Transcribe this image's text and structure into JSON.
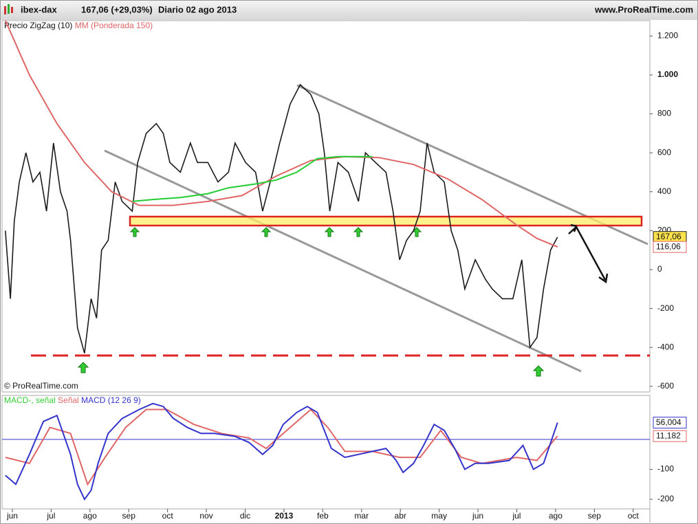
{
  "header": {
    "symbol": "ibex-dax",
    "quote": "167,06 (+29,03%)",
    "period": "Diario  02 ago 2013",
    "site": "www.ProRealTime.com",
    "copyright": "© ProRealTime.com"
  },
  "chart_data": [
    {
      "type": "line",
      "xlim": [
        -0.265,
        16.43
      ],
      "ylim": [
        -629,
        1279
      ],
      "yticks": [
        {
          "value": 1200,
          "label": "1.200"
        },
        {
          "value": 1000,
          "label": "1.000"
        },
        800,
        600,
        400,
        200,
        0,
        -200,
        -400,
        -600
      ],
      "series": [
        {
          "name": "Precio ZigZag (10)",
          "color": "#1a1a1a",
          "last_label": "167,06",
          "x": [
            -0.18,
            -0.05,
            0.05,
            0.18,
            0.35,
            0.53,
            0.71,
            0.88,
            1.06,
            1.24,
            1.41,
            1.5,
            1.68,
            1.86,
            2.03,
            2.17,
            2.3,
            2.47,
            2.65,
            2.83,
            3.09,
            3.23,
            3.45,
            3.71,
            3.89,
            4.06,
            4.33,
            4.59,
            4.77,
            5.04,
            5.3,
            5.57,
            5.74,
            6.01,
            6.27,
            6.45,
            6.71,
            6.89,
            7.16,
            7.42,
            7.69,
            7.9,
            8.04,
            8.18,
            8.39,
            8.66,
            8.92,
            9.1,
            9.36,
            9.63,
            9.81,
            9.98,
            10.16,
            10.34,
            10.51,
            10.69,
            10.87,
            11.13,
            11.31,
            11.48,
            11.66,
            11.93,
            12.19,
            12.37,
            12.63,
            12.9,
            13.13,
            13.34,
            13.52,
            13.69,
            13.87,
            14.05
          ],
          "values": [
            200,
            -150,
            250,
            450,
            600,
            450,
            500,
            300,
            650,
            400,
            300,
            150,
            -300,
            -430,
            -150,
            -250,
            100,
            150,
            450,
            350,
            300,
            550,
            700,
            750,
            700,
            550,
            500,
            650,
            550,
            550,
            450,
            500,
            650,
            550,
            500,
            300,
            500,
            650,
            850,
            950,
            900,
            800,
            600,
            300,
            550,
            500,
            350,
            600,
            550,
            500,
            300,
            50,
            150,
            200,
            300,
            650,
            500,
            450,
            200,
            100,
            -100,
            50,
            -50,
            -100,
            -150,
            -150,
            50,
            -400,
            -350,
            -100,
            100,
            167.06
          ]
        },
        {
          "name": "MM (Ponderada 150)",
          "color": "#e06666",
          "last_label": "116,06",
          "x": [
            -0.18,
            0.44,
            1.15,
            1.86,
            2.56,
            3.27,
            4.15,
            5.04,
            5.92,
            6.8,
            7.69,
            8.57,
            9.45,
            10.34,
            11.22,
            12.1,
            12.99,
            13.52,
            14.05
          ],
          "values": [
            1280,
            1000,
            750,
            550,
            400,
            330,
            330,
            350,
            380,
            480,
            560,
            580,
            575,
            540,
            466,
            360,
            230,
            160,
            116.06
          ]
        },
        {
          "color": "#22cc33",
          "x": [
            3.09,
            3.62,
            4.33,
            5.04,
            5.57,
            6.27,
            6.8,
            7.33,
            7.86,
            8.39,
            9.28
          ],
          "values": [
            350,
            360,
            370,
            390,
            420,
            440,
            460,
            500,
            570,
            580,
            580
          ]
        }
      ]
    },
    {
      "type": "line",
      "label": "MACD-, señal",
      "xlim": [
        -0.265,
        16.43
      ],
      "ylim": [
        -232,
        147
      ],
      "yticks": [
        -100,
        -200
      ],
      "baseline": 0,
      "xticks": [
        {
          "value": 0,
          "label": "jun"
        },
        {
          "value": 1,
          "label": "jul"
        },
        {
          "value": 2,
          "label": "ago"
        },
        {
          "value": 3,
          "label": "sep"
        },
        {
          "value": 4,
          "label": "oct"
        },
        {
          "value": 5,
          "label": "nov"
        },
        {
          "value": 6,
          "label": "dic"
        },
        {
          "value": 7,
          "label": "2013"
        },
        {
          "value": 8,
          "label": "feb"
        },
        {
          "value": 9,
          "label": "mar"
        },
        {
          "value": 10,
          "label": "abr"
        },
        {
          "value": 11,
          "label": "may"
        },
        {
          "value": 12,
          "label": "jun"
        },
        {
          "value": 13,
          "label": "jul"
        },
        {
          "value": 14,
          "label": "ago"
        },
        {
          "value": 15,
          "label": "sep"
        },
        {
          "value": 16,
          "label": "oct"
        }
      ],
      "series": [
        {
          "name": "Señal",
          "color": "#e06666",
          "last_label": "11,182",
          "x": [
            -0.18,
            0.44,
            0.97,
            1.5,
            1.94,
            2.39,
            2.92,
            3.45,
            3.98,
            4.68,
            5.39,
            6.1,
            6.54,
            7.16,
            7.69,
            8.13,
            8.57,
            9.28,
            9.98,
            10.51,
            11.04,
            11.57,
            12.1,
            12.99,
            13.52,
            14.05
          ],
          "values": [
            -60,
            -80,
            40,
            20,
            -150,
            -60,
            40,
            100,
            100,
            50,
            20,
            5,
            -30,
            40,
            100,
            40,
            -40,
            -40,
            -60,
            -60,
            30,
            -60,
            -80,
            -60,
            -70,
            11.182
          ]
        },
        {
          "name": "MACD (12 26 9)",
          "color": "#3333cc",
          "last_label": "56,004",
          "x": [
            -0.18,
            0.09,
            0.44,
            0.8,
            1.15,
            1.5,
            1.68,
            1.86,
            2.03,
            2.21,
            2.47,
            2.83,
            3.27,
            3.62,
            3.89,
            4.15,
            4.51,
            4.86,
            5.21,
            5.74,
            6.1,
            6.45,
            6.71,
            6.98,
            7.33,
            7.6,
            7.86,
            8.04,
            8.22,
            8.57,
            8.92,
            9.28,
            9.63,
            9.89,
            10.07,
            10.34,
            10.6,
            10.87,
            11.13,
            11.4,
            11.66,
            11.93,
            12.28,
            12.81,
            13.16,
            13.43,
            13.69,
            14.05
          ],
          "values": [
            -120,
            -150,
            -50,
            60,
            80,
            -50,
            -150,
            -200,
            -170,
            -80,
            20,
            70,
            100,
            120,
            110,
            70,
            40,
            20,
            20,
            10,
            -10,
            -50,
            -20,
            50,
            90,
            110,
            90,
            30,
            -30,
            -60,
            -50,
            -40,
            -30,
            -70,
            -110,
            -80,
            -20,
            50,
            30,
            -30,
            -100,
            -80,
            -80,
            -70,
            -20,
            -100,
            -80,
            56.004
          ]
        }
      ]
    }
  ]
}
